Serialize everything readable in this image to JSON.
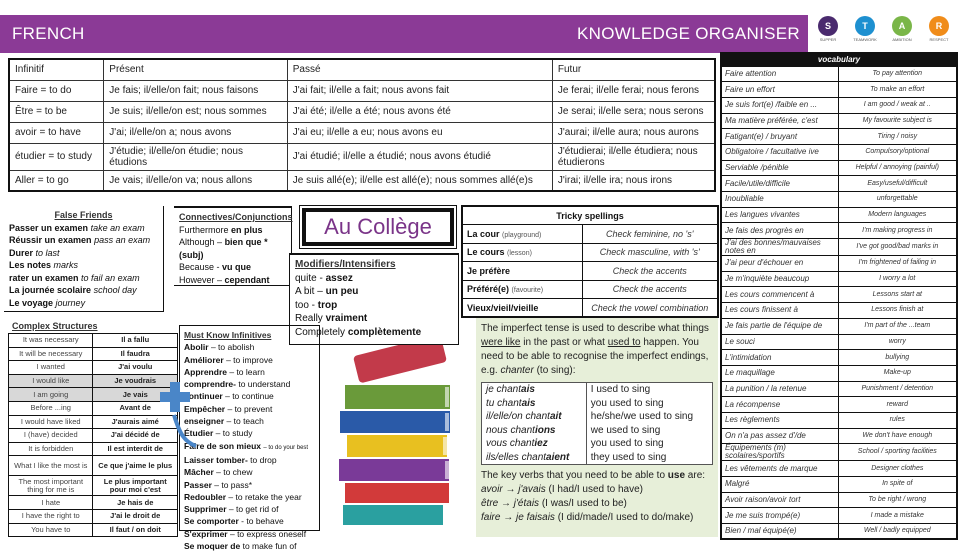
{
  "header": {
    "subject": "FRENCH",
    "title": "KNOWLEDGE ORGANISER"
  },
  "logos": [
    {
      "letter": "S",
      "word": "SUPPER",
      "color": "#4a2a6e"
    },
    {
      "letter": "T",
      "word": "TEAMWORK",
      "color": "#1e90d0"
    },
    {
      "letter": "A",
      "word": "AMBITION",
      "color": "#7ab648"
    },
    {
      "letter": "R",
      "word": "RESPECT",
      "color": "#f08c1a"
    }
  ],
  "verbs": {
    "headers": [
      "Infinitif",
      "Présent",
      "Passé",
      "Futur"
    ],
    "rows": [
      [
        "Faire = to do",
        "Je fais; il/elle/on fait; nous faisons",
        "J'ai fait; il/elle a fait; nous avons fait",
        "Je ferai; il/elle ferai; nous ferons"
      ],
      [
        "Être = to be",
        "Je suis; il/elle/on est; nous sommes",
        "J'ai été; il/elle a été; nous avons été",
        "Je serai; il/elle sera; nous serons"
      ],
      [
        "avoir = to have",
        "J'ai; il/elle/on a; nous avons",
        "J'ai eu; il/elle a eu; nous avons eu",
        "J'aurai; il/elle aura; nous aurons"
      ],
      [
        "étudier = to study",
        "J'étudie; il/elle/on étudie; nous étudions",
        "J'ai étudié; il/elle a étudié; nous avons étudié",
        "J'étudierai; il/elle étudiera; nous étudierons"
      ],
      [
        "Aller = to go",
        "Je vais; il/elle/on va; nous allons",
        "Je suis allé(e); il/elle est allé(e); nous sommes allé(e)s",
        "J'irai; il/elle ira; nous irons"
      ]
    ]
  },
  "vocab": {
    "title": "vocabulary",
    "rows": [
      [
        "Faire attention",
        "To pay attention"
      ],
      [
        "Faire un effort",
        "To make an effort"
      ],
      [
        "Je suis fort(e) /faible en ...",
        "I am good / weak at .."
      ],
      [
        "Ma matière préférée, c'est",
        "My favourite subject is"
      ],
      [
        "Fatigant(e) / bruyant",
        "Tiring / noisy"
      ],
      [
        "Obligatoire / facultative ive",
        "Compulsory/optional"
      ],
      [
        "Serviable /pénible",
        "Helpful / annoying (painful)"
      ],
      [
        "Facile/utile/difficile",
        "Easy/useful/difficult"
      ],
      [
        "Inoubliable",
        "unforgettable"
      ],
      [
        "Les langues vivantes",
        "Modern languages"
      ],
      [
        "Je fais des progrès en",
        "I'm making progress in"
      ],
      [
        "J'ai des bonnes/mauvaises notes en",
        "I've got good/bad marks in"
      ],
      [
        "J'ai peur d'échouer en",
        "I'm frightened of failing in"
      ],
      [
        "Je m'inquiète beaucoup",
        "I worry a lot"
      ],
      [
        "Les cours commencent à",
        "Lessons start at"
      ],
      [
        "Les cours finissent à",
        "Lessons finish at"
      ],
      [
        "Je fais partie de l'équipe de",
        "I'm part of the ...team"
      ],
      [
        "Le souci",
        "worry"
      ],
      [
        "L'intimidation",
        "bullying"
      ],
      [
        "Le maquillage",
        "Make-up"
      ],
      [
        "La punition / la retenue",
        "Punishment / detention"
      ],
      [
        "La récompense",
        "reward"
      ],
      [
        "Les règlements",
        "rules"
      ],
      [
        "On n'a pas assez d'/de",
        "We don't have enough"
      ],
      [
        "Équipements (m) scolaires/sportifs",
        "School / sporting facilities"
      ],
      [
        "Les vêtements de marque",
        "Designer clothes"
      ],
      [
        "Malgré",
        "In spite of"
      ],
      [
        "Avoir raison/avoir tort",
        "To be right / wrong"
      ],
      [
        "Je me suis trompé(e)",
        "I made a mistake"
      ],
      [
        "Bien / mal équipé(e)",
        "Well / badly equipped"
      ]
    ]
  },
  "false_friends": {
    "title": "False Friends",
    "items": [
      [
        "Passer un examen",
        "take an exam"
      ],
      [
        "Réussir un examen",
        "pass an exam"
      ],
      [
        "Durer",
        "to last"
      ],
      [
        "Les notes",
        "marks"
      ],
      [
        "rater un examen",
        "to fail an exam"
      ],
      [
        "La journée scolaire",
        "school day"
      ],
      [
        "Le voyage",
        "journey"
      ]
    ]
  },
  "connectives": {
    "title": "Connectives/Conjunctions",
    "items": [
      [
        "Furthermore",
        "en plus"
      ],
      [
        "Although –",
        "bien que *"
      ],
      [
        "",
        "(subj)"
      ],
      [
        "Because -",
        "vu que"
      ],
      [
        "However –",
        "cependant"
      ]
    ]
  },
  "college": "Au Collège",
  "modifiers": {
    "title": "Modifiers/Intensifiers",
    "items": [
      [
        "quite -",
        "assez"
      ],
      [
        "A bit –",
        "un peu"
      ],
      [
        "too -",
        "trop"
      ],
      [
        "Really",
        "vraiment"
      ],
      [
        "Completely",
        "complètemente"
      ]
    ]
  },
  "tricky": {
    "title": "Tricky spellings",
    "rows": [
      [
        "La cour",
        "(playground)",
        "Check feminine, no 's'"
      ],
      [
        "Le cours",
        "(lesson)",
        "Check masculine, with 's'"
      ],
      [
        "Je préfère",
        "",
        "Check the accents"
      ],
      [
        "Préféré(e)",
        "(favourite)",
        "Check the accents"
      ],
      [
        "Vieux/vieil/vieille",
        "",
        "Check the vowel combination"
      ]
    ]
  },
  "complex": {
    "title": "Complex Structures",
    "rows": [
      [
        "It was necessary",
        "Il a fallu"
      ],
      [
        "It will be necessary",
        "Il faudra"
      ],
      [
        "I wanted",
        "J'ai voulu"
      ],
      [
        "I would like",
        "Je voudrais"
      ],
      [
        "I am going",
        "Je vais"
      ],
      [
        "Before ...ing",
        "Avant de"
      ],
      [
        "I would have liked",
        "J'aurais aimé"
      ],
      [
        "I (have) decided",
        "J'ai décidé de"
      ],
      [
        "It is forbidden",
        "Il est interdit de"
      ],
      [
        "What I like the most is",
        "Ce que j'aime le plus"
      ],
      [
        "The most important thing for me is",
        "Le plus important pour moi c'est"
      ],
      [
        "I hate",
        "Je hais de"
      ],
      [
        "I have the right to",
        "J'ai le droit de"
      ],
      [
        "You have to",
        "Il faut / on doit"
      ]
    ]
  },
  "must_know": {
    "title": "Must Know Infinitives",
    "items": [
      [
        "Abolir",
        "– to abolish"
      ],
      [
        "Améliorer",
        "– to improve"
      ],
      [
        "Apprendre",
        "– to learn"
      ],
      [
        "comprendre-",
        "to understand"
      ],
      [
        "continuer",
        "– to continue"
      ],
      [
        "Empêcher",
        "– to prevent"
      ],
      [
        "enseigner",
        "– to teach"
      ],
      [
        "Étudier",
        "– to study"
      ],
      [
        "Faire de son mieux",
        "– to do your best"
      ],
      [
        "Laisser tomber-",
        "to drop"
      ],
      [
        "Mâcher",
        "– to chew"
      ],
      [
        "Passer",
        "– to pass*"
      ],
      [
        "Redoubler",
        "– to retake the year"
      ],
      [
        "Supprimer",
        "– to get rid of"
      ],
      [
        "Se comporter",
        "- to behave"
      ],
      [
        "S'exprimer",
        "– to express oneself"
      ],
      [
        "Se moquer de",
        "to make fun of"
      ]
    ]
  },
  "imperfect": {
    "intro_1": "The imperfect tense is used to describe what things ",
    "were_like": "were like",
    "intro_2": " in the past or what ",
    "used_to": "used to",
    "intro_3": " happen. You need to be able to recognise the imperfect endings, e.g. ",
    "chanter": "chanter",
    "intro_4": " (to sing):",
    "rows": [
      [
        "je chant",
        "ais",
        "I used to sing"
      ],
      [
        "tu chant",
        "ais",
        "you used to sing"
      ],
      [
        "il/elle/on chant",
        "ait",
        "he/she/we used to sing"
      ],
      [
        "nous chant",
        "ions",
        "we used to sing"
      ],
      [
        "vous chant",
        "iez",
        "you used to sing"
      ],
      [
        "ils/elles chant",
        "aient",
        "they used to sing"
      ]
    ],
    "key_1": "The key verbs that you need to be able to ",
    "use": "use",
    "key_2": " are:",
    "key_verbs": [
      [
        "avoir → j'av",
        "ais",
        " (I had/I used to have)"
      ],
      [
        "être → j'ét",
        "ais",
        " (I was/I used to be)"
      ],
      [
        "faire → je fais",
        "ais",
        " (I did/made/I used to do/make)"
      ]
    ]
  }
}
